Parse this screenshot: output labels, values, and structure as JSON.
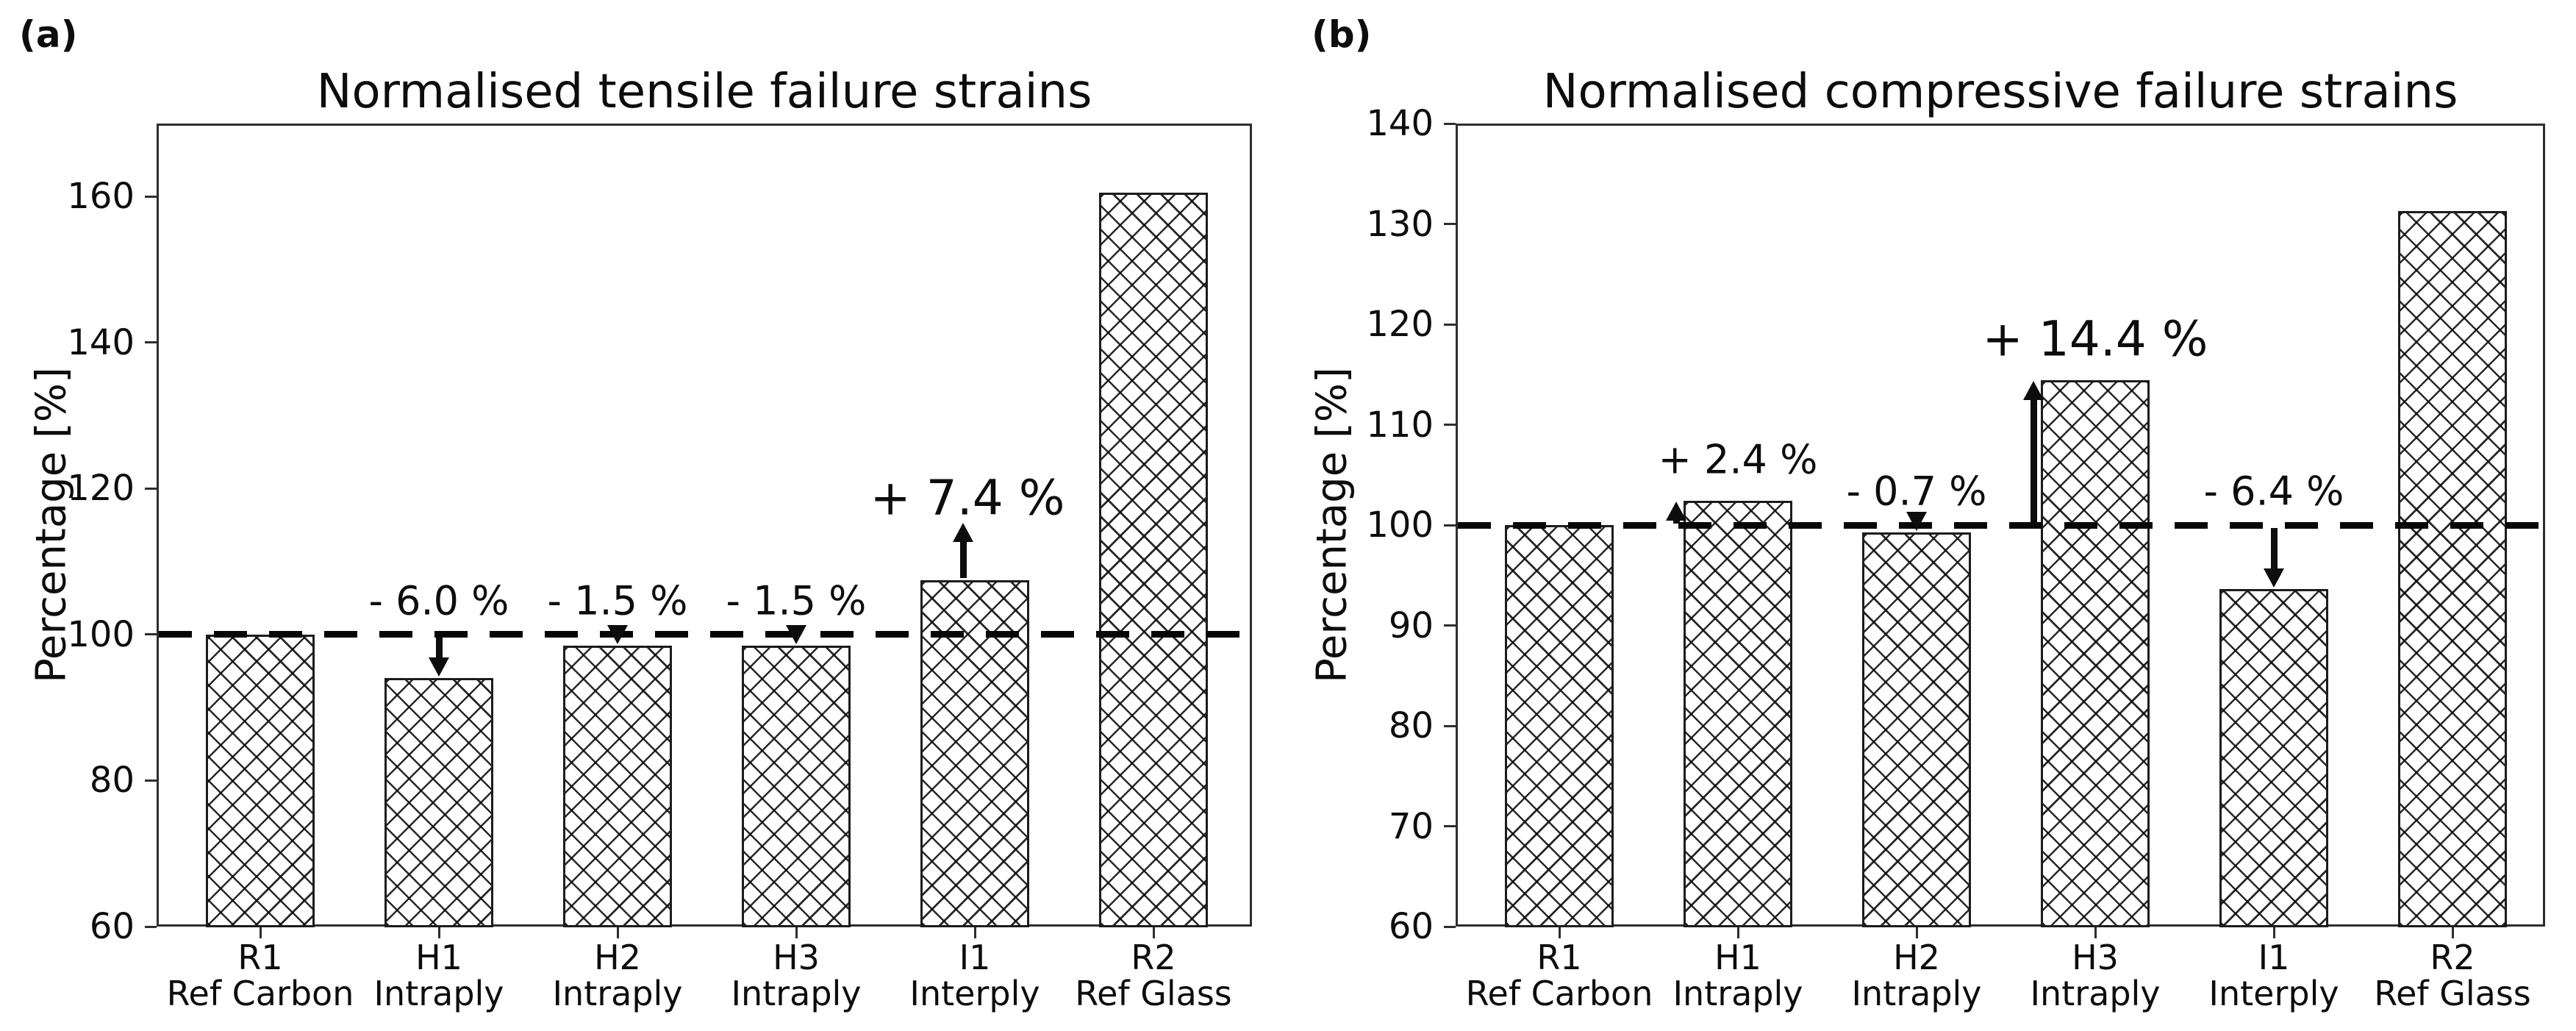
{
  "figure": {
    "background": "#ffffff",
    "ink": "#0d0d0d",
    "axis_color": "#2e2e2e",
    "bar_fill": "#ffffff",
    "bar_edge": "#1c1c1c",
    "hatch": "xx-crosshatch",
    "reference_line_style": "dashed-black"
  },
  "chart_data": [
    {
      "type": "bar",
      "panel_label": "(a)",
      "title": "Normalised tensile failure strains",
      "ylabel": "Percentage [%]",
      "ylim": [
        60,
        170
      ],
      "yticks": [
        160,
        140,
        120,
        100,
        80,
        60
      ],
      "reference_line": 100,
      "grid": false,
      "legend": "none",
      "categories": [
        {
          "code": "R1",
          "family": "Ref Carbon"
        },
        {
          "code": "H1",
          "family": "Intraply"
        },
        {
          "code": "H2",
          "family": "Intraply"
        },
        {
          "code": "H3",
          "family": "Intraply"
        },
        {
          "code": "I1",
          "family": "Interply"
        },
        {
          "code": "R2",
          "family": "Ref Glass"
        }
      ],
      "values": [
        100.0,
        94.0,
        98.5,
        98.5,
        107.4,
        160.5
      ],
      "annotations": [
        {
          "category": "H1",
          "text": "- 6.0 %",
          "dir": "down",
          "arrow_style": "baseline-to-bar",
          "size": "normal"
        },
        {
          "category": "H2",
          "text": "- 1.5 %",
          "dir": "down",
          "arrow_style": "baseline-to-bar",
          "size": "normal"
        },
        {
          "category": "H3",
          "text": "- 1.5 %",
          "dir": "down",
          "arrow_style": "baseline-to-bar",
          "size": "normal"
        },
        {
          "category": "I1",
          "text": "+ 7.4 %",
          "dir": "up",
          "arrow_style": "above-bar",
          "size": "large"
        }
      ]
    },
    {
      "type": "bar",
      "panel_label": "(b)",
      "title": "Normalised compressive failure strains",
      "ylabel": "Percentage [%]",
      "ylim": [
        60,
        140
      ],
      "yticks": [
        140,
        130,
        120,
        110,
        100,
        90,
        80,
        70,
        60
      ],
      "reference_line": 100,
      "grid": false,
      "legend": "none",
      "categories": [
        {
          "code": "R1",
          "family": "Ref Carbon"
        },
        {
          "code": "H1",
          "family": "Intraply"
        },
        {
          "code": "H2",
          "family": "Intraply"
        },
        {
          "code": "H3",
          "family": "Intraply"
        },
        {
          "code": "I1",
          "family": "Interply"
        },
        {
          "code": "R2",
          "family": "Ref Glass"
        }
      ],
      "values": [
        100.0,
        102.4,
        99.3,
        114.4,
        93.6,
        131.3
      ],
      "annotations": [
        {
          "category": "H1",
          "text": "+ 2.4 %",
          "dir": "up",
          "arrow_style": "baseline-to-bar",
          "size": "normal"
        },
        {
          "category": "H2",
          "text": "- 0.7 %",
          "dir": "down",
          "arrow_style": "baseline-to-bar",
          "size": "normal"
        },
        {
          "category": "H3",
          "text": "+ 14.4 %",
          "dir": "up",
          "arrow_style": "baseline-to-bar",
          "size": "large"
        },
        {
          "category": "I1",
          "text": "- 6.4 %",
          "dir": "down",
          "arrow_style": "baseline-to-bar",
          "size": "normal"
        }
      ]
    }
  ]
}
